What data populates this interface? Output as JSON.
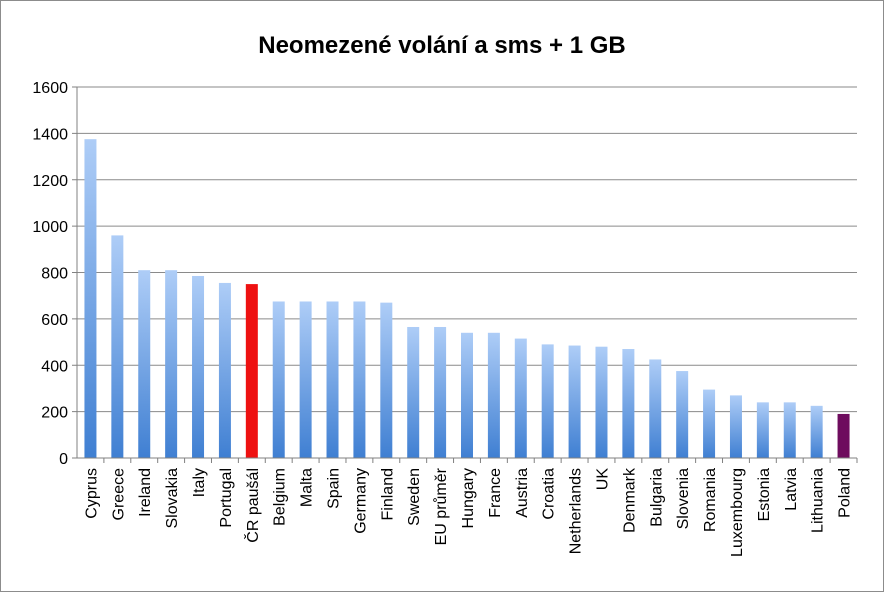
{
  "chart_data": {
    "type": "bar",
    "title": "Neomezené volání a sms + 1 GB",
    "xlabel": "",
    "ylabel": "",
    "ylim": [
      0,
      1600
    ],
    "yticks": [
      0,
      200,
      400,
      600,
      800,
      1000,
      1200,
      1400,
      1600
    ],
    "grid": true,
    "legend": "none",
    "categories": [
      "Cyprus",
      "Greece",
      "Ireland",
      "Slovakia",
      "Italy",
      "Portugal",
      "ČR paušál",
      "Belgium",
      "Malta",
      "Spain",
      "Germany",
      "Finland",
      "Sweden",
      "EU průměr",
      "Hungary",
      "France",
      "Austria",
      "Croatia",
      "Netherlands",
      "UK",
      "Denmark",
      "Bulgaria",
      "Slovenia",
      "Romania",
      "Luxembourg",
      "Estonia",
      "Latvia",
      "Lithuania",
      "Poland"
    ],
    "values": [
      1375,
      960,
      810,
      810,
      785,
      755,
      750,
      675,
      675,
      675,
      675,
      670,
      565,
      565,
      540,
      540,
      515,
      490,
      485,
      480,
      470,
      425,
      375,
      295,
      270,
      240,
      240,
      225,
      190
    ],
    "colors": {
      "default_top": "#aecdf7",
      "default_bottom": "#3f7fd2",
      "highlight": {
        "ČR paušál": "#ee1111",
        "Poland": "#6e0c5e"
      }
    }
  }
}
